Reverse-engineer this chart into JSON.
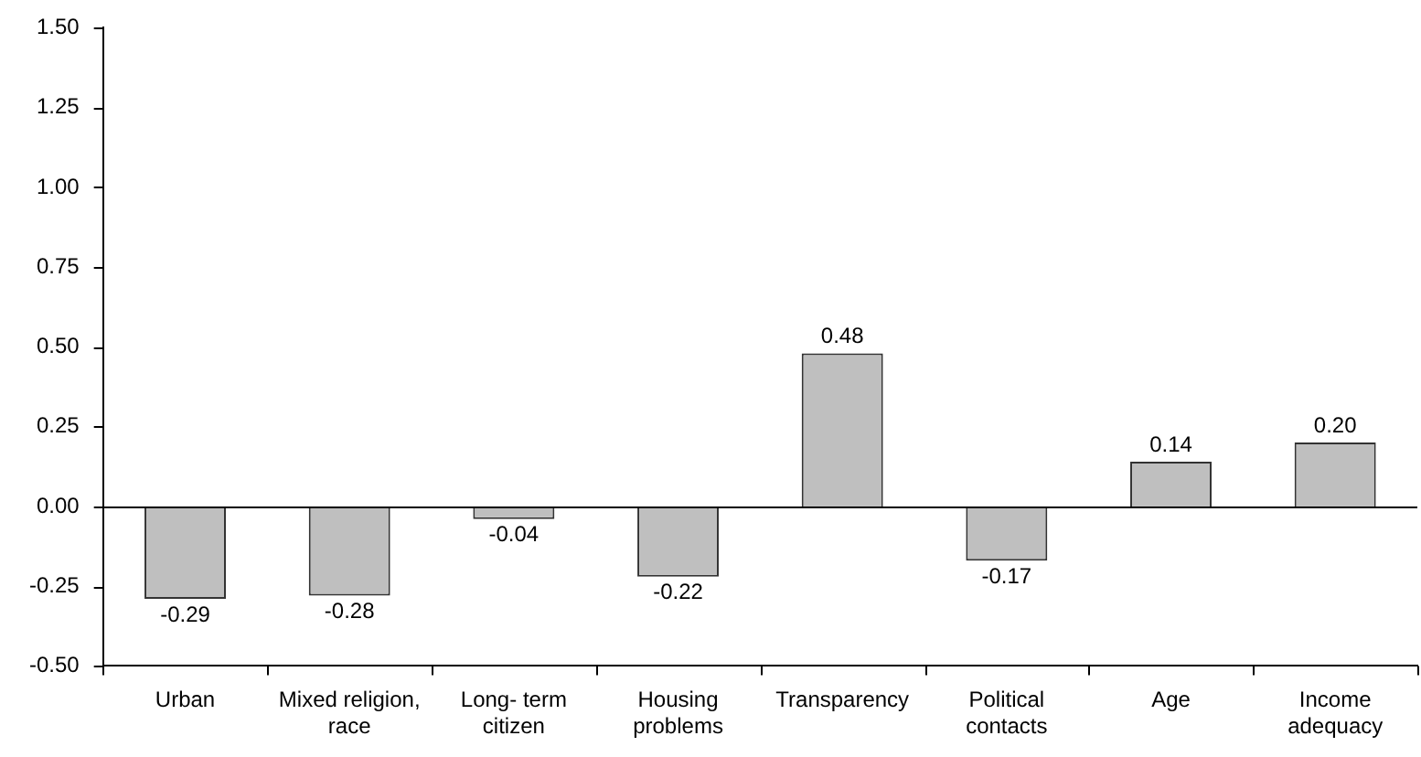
{
  "chart_data": {
    "type": "bar",
    "categories": [
      "Urban",
      "Mixed religion, race",
      "Long- term citizen",
      "Housing problems",
      "Transparency",
      "Political contacts",
      "Age",
      "Income adequacy"
    ],
    "values": [
      -0.29,
      -0.28,
      -0.04,
      -0.22,
      0.48,
      -0.17,
      0.14,
      0.2
    ],
    "color": "#bfbfbf",
    "ylim": [
      -0.5,
      1.5
    ],
    "yticks": [
      {
        "value": -0.5,
        "label": "-0.50"
      },
      {
        "value": -0.25,
        "label": "-0.25"
      },
      {
        "value": 0,
        "label": "0.00"
      },
      {
        "value": 0.25,
        "label": "0.25"
      },
      {
        "value": 0.5,
        "label": "0.50"
      },
      {
        "value": 0.75,
        "label": "0.75"
      },
      {
        "value": 1,
        "label": "1.00"
      },
      {
        "value": 1.25,
        "label": "1.25"
      },
      {
        "value": 1.5,
        "label": "1.50"
      }
    ],
    "data_labels": true,
    "value_labels": [
      "-0.29",
      "-0.28",
      "-0.04",
      "-0.22",
      "0.48",
      "-0.17",
      "0.14",
      "0.20"
    ],
    "ref_lines": [
      {
        "axis": "y",
        "value": 0,
        "color": "#000000"
      }
    ],
    "grid": false,
    "legend": false
  }
}
